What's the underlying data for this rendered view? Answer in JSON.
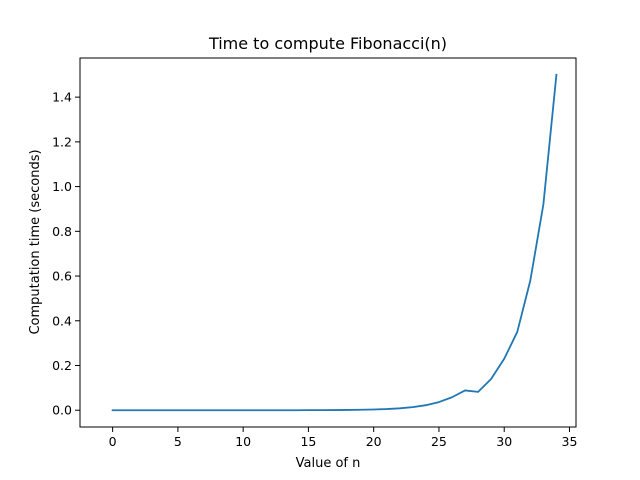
{
  "chart_data": {
    "type": "line",
    "title": "Time to compute Fibonacci(n)",
    "xlabel": "Value of n",
    "ylabel": "Computation time (seconds)",
    "xlim": [
      -2.5,
      35.5
    ],
    "ylim": [
      -0.075,
      1.575
    ],
    "xticks": [
      0,
      5,
      10,
      15,
      20,
      25,
      30,
      35
    ],
    "xtick_labels": [
      "0",
      "5",
      "10",
      "15",
      "20",
      "25",
      "30",
      "35"
    ],
    "yticks": [
      0.0,
      0.2,
      0.4,
      0.6,
      0.8,
      1.0,
      1.2,
      1.4
    ],
    "ytick_labels": [
      "0.0",
      "0.2",
      "0.4",
      "0.6",
      "0.8",
      "1.0",
      "1.2",
      "1.4"
    ],
    "grid": false,
    "series": [
      {
        "color": "#1f77b4",
        "x": [
          0,
          1,
          2,
          3,
          4,
          5,
          6,
          7,
          8,
          9,
          10,
          11,
          12,
          13,
          14,
          15,
          16,
          17,
          18,
          19,
          20,
          21,
          22,
          23,
          24,
          25,
          26,
          27,
          28,
          29,
          30,
          31,
          32,
          33,
          34
        ],
        "y": [
          0,
          0,
          0,
          0,
          0,
          0,
          0,
          0,
          0,
          0,
          0,
          0,
          0,
          0,
          0,
          0.0003,
          0.0005,
          0.0008,
          0.0012,
          0.002,
          0.0033,
          0.0053,
          0.0086,
          0.0139,
          0.0225,
          0.0364,
          0.058,
          0.0885,
          0.082,
          0.14,
          0.23,
          0.35,
          0.58,
          0.92,
          1.5
        ]
      }
    ]
  }
}
